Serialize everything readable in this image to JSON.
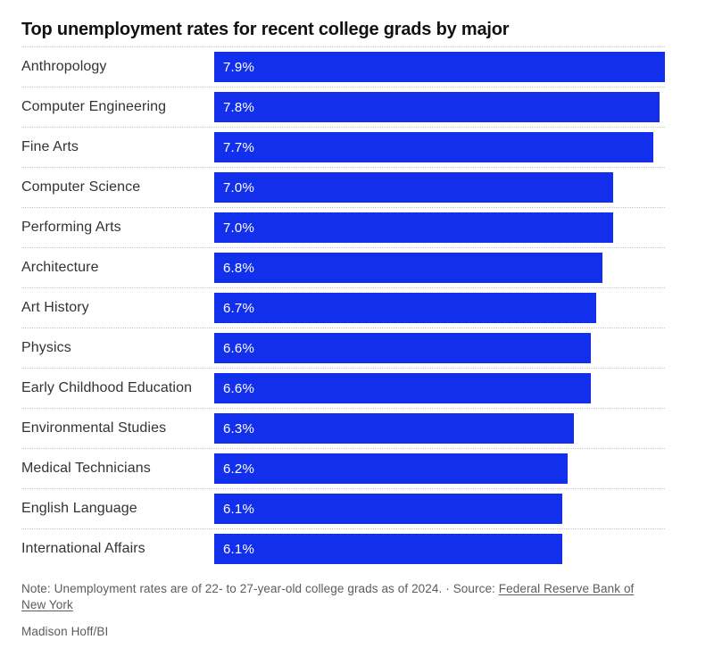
{
  "title": "Top unemployment rates for recent college grads by major",
  "chart_data": {
    "type": "bar",
    "orientation": "horizontal",
    "title": "Top unemployment rates for recent college grads by major",
    "categories": [
      "Anthropology",
      "Computer Engineering",
      "Fine Arts",
      "Computer Science",
      "Performing Arts",
      "Architecture",
      "Art History",
      "Physics",
      "Early Childhood Education",
      "Environmental Studies",
      "Medical Technicians",
      "English Language",
      "International Affairs"
    ],
    "values": [
      7.9,
      7.8,
      7.7,
      7.0,
      7.0,
      6.8,
      6.7,
      6.6,
      6.6,
      6.3,
      6.2,
      6.1,
      6.1
    ],
    "value_labels": [
      "7.9%",
      "7.8%",
      "7.7%",
      "7.0%",
      "7.0%",
      "6.8%",
      "6.7%",
      "6.6%",
      "6.6%",
      "6.3%",
      "6.2%",
      "6.1%",
      "6.1%"
    ],
    "xlabel": "",
    "ylabel": "",
    "xlim": [
      0,
      7.9
    ],
    "grid": false,
    "legend": false,
    "bar_color": "#1230eb",
    "value_label_color": "#ffffff",
    "category_label_color": "#333333",
    "separator_color": "#c9c9c9"
  },
  "footer": {
    "note": "Note: Unemployment rates are of 22- to 27-year-old college grads as of 2024.",
    "separator": "·",
    "source_label": "Source:",
    "source_link_text": "Federal Reserve Bank of New York",
    "credit": "Madison Hoff/BI"
  }
}
